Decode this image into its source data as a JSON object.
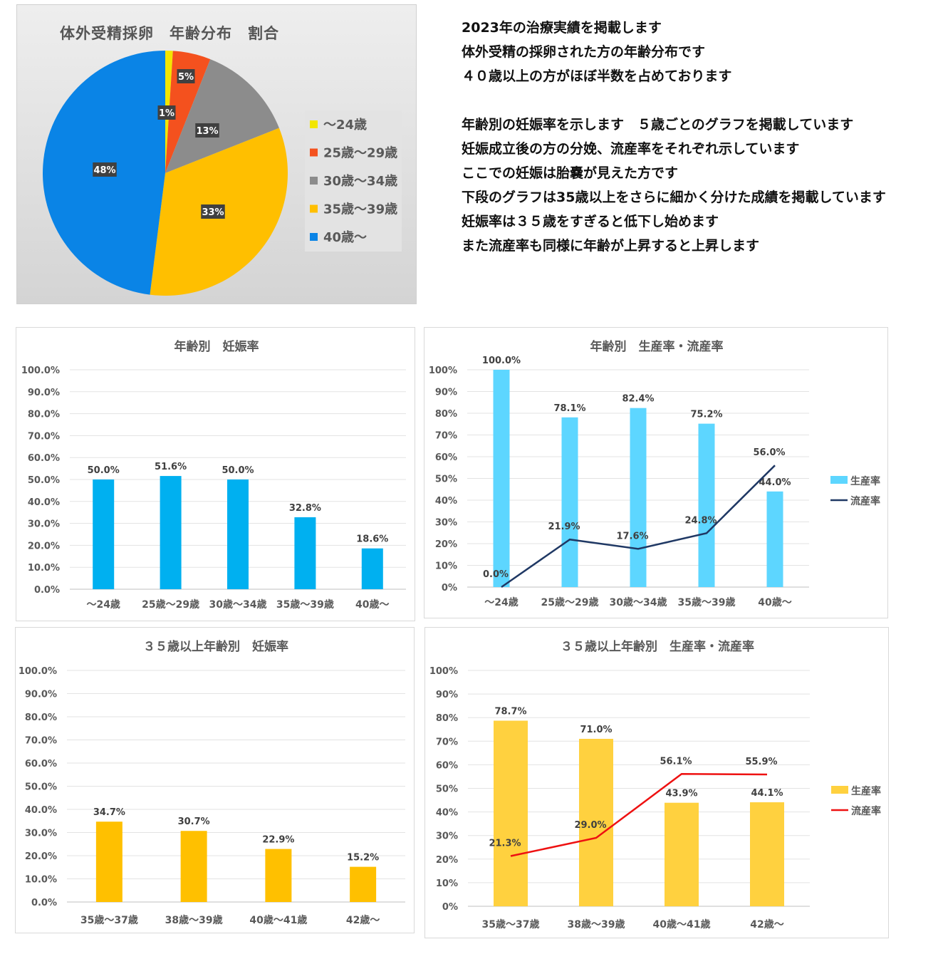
{
  "description_lines": [
    "2023年の治療実績を掲載します",
    "体外受精の採卵された方の年齢分布です",
    "４０歳以上の方がほぼ半数を占めております",
    "",
    "年齢別の妊娠率を示します　５歳ごとのグラフを掲載しています",
    "妊娠成立後の方の分娩、流産率をそれぞれ示しています",
    "ここでの妊娠は胎嚢が見えた方です",
    "下段のグラフは35歳以上をさらに細かく分けた成績を掲載しています",
    "妊娠率は３５歳をすぎると低下し始めます",
    "また流産率も同様に年齢が上昇すると上昇します"
  ],
  "chart_data": [
    {
      "type": "pie",
      "title": "体外受精採卵　年齢分布　割合",
      "categories": [
        "〜24歳",
        "25歳〜29歳",
        "30歳〜34歳",
        "35歳〜39歳",
        "40歳〜"
      ],
      "values": [
        1,
        5,
        13,
        33,
        48
      ],
      "data_labels": [
        "1%",
        "5%",
        "13%",
        "33%",
        "48%"
      ],
      "colors": [
        "#f2e600",
        "#f4511e",
        "#8c8c8c",
        "#ffbf00",
        "#0a84e6"
      ],
      "legend": "right"
    },
    {
      "type": "bar",
      "title": "年齢別　妊娠率",
      "categories": [
        "〜24歳",
        "25歳〜29歳",
        "30歳〜34歳",
        "35歳〜39歳",
        "40歳〜"
      ],
      "values": [
        50.0,
        51.6,
        50.0,
        32.8,
        18.6
      ],
      "data_labels": [
        "50.0%",
        "51.6%",
        "50.0%",
        "32.8%",
        "18.6%"
      ],
      "ylim": [
        0,
        100
      ],
      "yticks": [
        "0.0%",
        "10.0%",
        "20.0%",
        "30.0%",
        "40.0%",
        "50.0%",
        "60.0%",
        "70.0%",
        "80.0%",
        "90.0%",
        "100.0%"
      ],
      "color": "#00b0f0",
      "grid": true
    },
    {
      "type": "bar",
      "title": "年齢別　生産率・流産率",
      "categories": [
        "〜24歳",
        "25歳〜29歳",
        "30歳〜34歳",
        "35歳〜39歳",
        "40歳〜"
      ],
      "series": [
        {
          "name": "生産率",
          "kind": "bar",
          "values": [
            100.0,
            78.1,
            82.4,
            75.2,
            44.0
          ],
          "data_labels": [
            "100.0%",
            "78.1%",
            "82.4%",
            "75.2%",
            "44.0%"
          ],
          "color": "#5dd6ff"
        },
        {
          "name": "流産率",
          "kind": "line",
          "values": [
            0.0,
            21.9,
            17.6,
            24.8,
            56.0
          ],
          "data_labels": [
            "0.0%",
            "21.9%",
            "17.6%",
            "24.8%",
            "56.0%"
          ],
          "color": "#1f3864"
        }
      ],
      "ylim": [
        0,
        100
      ],
      "yticks": [
        "0%",
        "10%",
        "20%",
        "30%",
        "40%",
        "50%",
        "60%",
        "70%",
        "80%",
        "90%",
        "100%"
      ],
      "legend": "right",
      "grid": true
    },
    {
      "type": "bar",
      "title": "３５歳以上年齢別　妊娠率",
      "categories": [
        "35歳〜37歳",
        "38歳〜39歳",
        "40歳〜41歳",
        "42歳〜"
      ],
      "values": [
        34.7,
        30.7,
        22.9,
        15.2
      ],
      "data_labels": [
        "34.7%",
        "30.7%",
        "22.9%",
        "15.2%"
      ],
      "ylim": [
        0,
        100
      ],
      "yticks": [
        "0.0%",
        "10.0%",
        "20.0%",
        "30.0%",
        "40.0%",
        "50.0%",
        "60.0%",
        "70.0%",
        "80.0%",
        "90.0%",
        "100.0%"
      ],
      "color": "#ffc000",
      "grid": true
    },
    {
      "type": "bar",
      "title": "３５歳以上年齢別　生産率・流産率",
      "categories": [
        "35歳〜37歳",
        "38歳〜39歳",
        "40歳〜41歳",
        "42歳〜"
      ],
      "series": [
        {
          "name": "生産率",
          "kind": "bar",
          "values": [
            78.7,
            71.0,
            43.9,
            44.1
          ],
          "data_labels": [
            "78.7%",
            "71.0%",
            "43.9%",
            "44.1%"
          ],
          "color": "#ffd13f"
        },
        {
          "name": "流産率",
          "kind": "line",
          "values": [
            21.3,
            29.0,
            56.1,
            55.9
          ],
          "data_labels": [
            "21.3%",
            "29.0%",
            "56.1%",
            "55.9%"
          ],
          "color": "#ee1111"
        }
      ],
      "ylim": [
        0,
        100
      ],
      "yticks": [
        "0%",
        "10%",
        "20%",
        "30%",
        "40%",
        "50%",
        "60%",
        "70%",
        "80%",
        "90%",
        "100%"
      ],
      "legend": "right",
      "grid": true
    }
  ]
}
